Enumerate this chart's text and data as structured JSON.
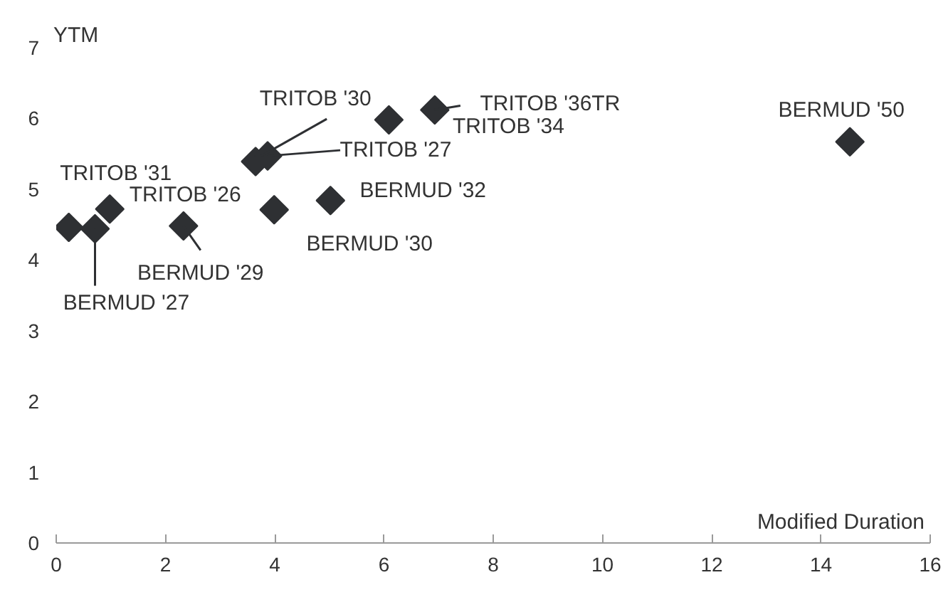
{
  "chart_data": {
    "type": "scatter",
    "xlabel": "Modified Duration",
    "ylabel": "YTM",
    "x": [
      0.23,
      0.71,
      0.98,
      2.33,
      3.65,
      3.87,
      3.99,
      5.02,
      6.09,
      6.93,
      14.53
    ],
    "values": [
      4.46,
      4.44,
      4.72,
      4.48,
      5.39,
      5.47,
      4.71,
      4.84,
      5.98,
      6.12,
      5.67
    ],
    "color": "#2e3033",
    "marker": "diamond",
    "xlim": [
      0,
      16
    ],
    "ylim": [
      0,
      7
    ],
    "xticks": [
      0,
      2,
      4,
      6,
      8,
      10,
      12,
      14,
      16
    ],
    "yticks": [
      0,
      1,
      2,
      3,
      4,
      5,
      6,
      7
    ],
    "annotations": [
      {
        "text": "TRITOB '31",
        "x": 0.23,
        "y": 4.46
      },
      {
        "text": "BERMUD '27",
        "x": 0.71,
        "y": 4.44
      },
      {
        "text": "TRITOB '26",
        "x": 0.98,
        "y": 4.72
      },
      {
        "text": "BERMUD '29",
        "x": 2.33,
        "y": 4.48
      },
      {
        "text": "TRITOB '30",
        "x": 3.65,
        "y": 5.39
      },
      {
        "text": "TRITOB '27",
        "x": 3.87,
        "y": 5.47
      },
      {
        "text": "BERMUD '30",
        "x": 3.99,
        "y": 4.71
      },
      {
        "text": "BERMUD '32",
        "x": 5.02,
        "y": 4.84
      },
      {
        "text": "TRITOB '34",
        "x": 6.09,
        "y": 5.98
      },
      {
        "text": "TRITOB '36TR",
        "x": 6.93,
        "y": 6.12
      },
      {
        "text": "BERMUD '50",
        "x": 14.53,
        "y": 5.67
      }
    ]
  }
}
